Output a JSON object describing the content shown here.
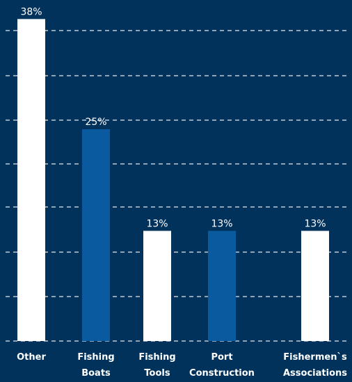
{
  "chart_data": {
    "type": "bar",
    "categories": [
      [
        "Other"
      ],
      [
        "Fishing",
        "Boats"
      ],
      [
        "Fishing",
        "Tools"
      ],
      [
        "Port",
        "Construction"
      ],
      [
        "Fishermen`s",
        "Associations"
      ]
    ],
    "values": [
      38,
      25,
      13,
      13,
      13
    ],
    "value_labels": [
      "38%",
      "25%",
      "13%",
      "13%",
      "13%"
    ],
    "bar_colors": [
      "#ffffff",
      "#0a5aa0",
      "#ffffff",
      "#0a5aa0",
      "#ffffff"
    ],
    "ylim": [
      0,
      40
    ],
    "grid": true,
    "title": "",
    "xlabel": "",
    "ylabel": ""
  },
  "colors": {
    "background": "#00325c",
    "gridline": "#ffffff",
    "text": "#ffffff"
  }
}
